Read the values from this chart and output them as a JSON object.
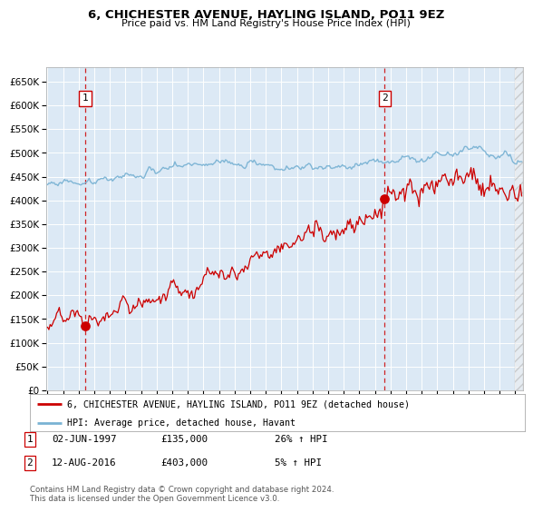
{
  "title": "6, CHICHESTER AVENUE, HAYLING ISLAND, PO11 9EZ",
  "subtitle": "Price paid vs. HM Land Registry's House Price Index (HPI)",
  "legend_line1": "6, CHICHESTER AVENUE, HAYLING ISLAND, PO11 9EZ (detached house)",
  "legend_line2": "HPI: Average price, detached house, Havant",
  "annotation1_date": "02-JUN-1997",
  "annotation1_price": "£135,000",
  "annotation1_hpi": "26% ↑ HPI",
  "annotation2_date": "12-AUG-2016",
  "annotation2_price": "£403,000",
  "annotation2_hpi": "5% ↑ HPI",
  "sale1_year": 1997.42,
  "sale1_value": 135000,
  "sale2_year": 2016.62,
  "sale2_value": 403000,
  "hpi_color": "#7ab3d4",
  "property_color": "#cc0000",
  "plot_bg_color": "#dce9f5",
  "grid_color": "#ffffff",
  "vline1_color": "#cc0000",
  "vline2_color": "#cc0000",
  "ylim_max": 680000,
  "xlim_start": 1994.9,
  "xlim_end": 2025.5,
  "footer": "Contains HM Land Registry data © Crown copyright and database right 2024.\nThis data is licensed under the Open Government Licence v3.0."
}
